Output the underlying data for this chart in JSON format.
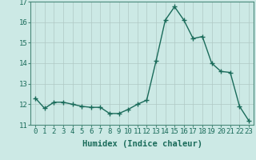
{
  "x": [
    0,
    1,
    2,
    3,
    4,
    5,
    6,
    7,
    8,
    9,
    10,
    11,
    12,
    13,
    14,
    15,
    16,
    17,
    18,
    19,
    20,
    21,
    22,
    23
  ],
  "y": [
    12.3,
    11.8,
    12.1,
    12.1,
    12.0,
    11.9,
    11.85,
    11.85,
    11.55,
    11.55,
    11.75,
    12.0,
    12.2,
    14.1,
    16.1,
    16.75,
    16.1,
    15.2,
    15.3,
    14.0,
    13.6,
    13.55,
    11.9,
    11.2
  ],
  "line_color": "#1a6b5a",
  "marker": "+",
  "marker_size": 4,
  "background_color": "#cce9e5",
  "grid_color": "#b0c8c4",
  "xlabel": "Humidex (Indice chaleur)",
  "ylim": [
    11,
    17
  ],
  "xlim": [
    -0.5,
    23.5
  ],
  "yticks": [
    11,
    12,
    13,
    14,
    15,
    16,
    17
  ],
  "xticks": [
    0,
    1,
    2,
    3,
    4,
    5,
    6,
    7,
    8,
    9,
    10,
    11,
    12,
    13,
    14,
    15,
    16,
    17,
    18,
    19,
    20,
    21,
    22,
    23
  ],
  "xtick_labels": [
    "0",
    "1",
    "2",
    "3",
    "4",
    "5",
    "6",
    "7",
    "8",
    "9",
    "10",
    "11",
    "12",
    "13",
    "14",
    "15",
    "16",
    "17",
    "18",
    "19",
    "20",
    "21",
    "22",
    "23"
  ],
  "tick_fontsize": 6.5,
  "xlabel_fontsize": 7.5,
  "line_width": 1.0,
  "marker_color": "#1a6b5a"
}
